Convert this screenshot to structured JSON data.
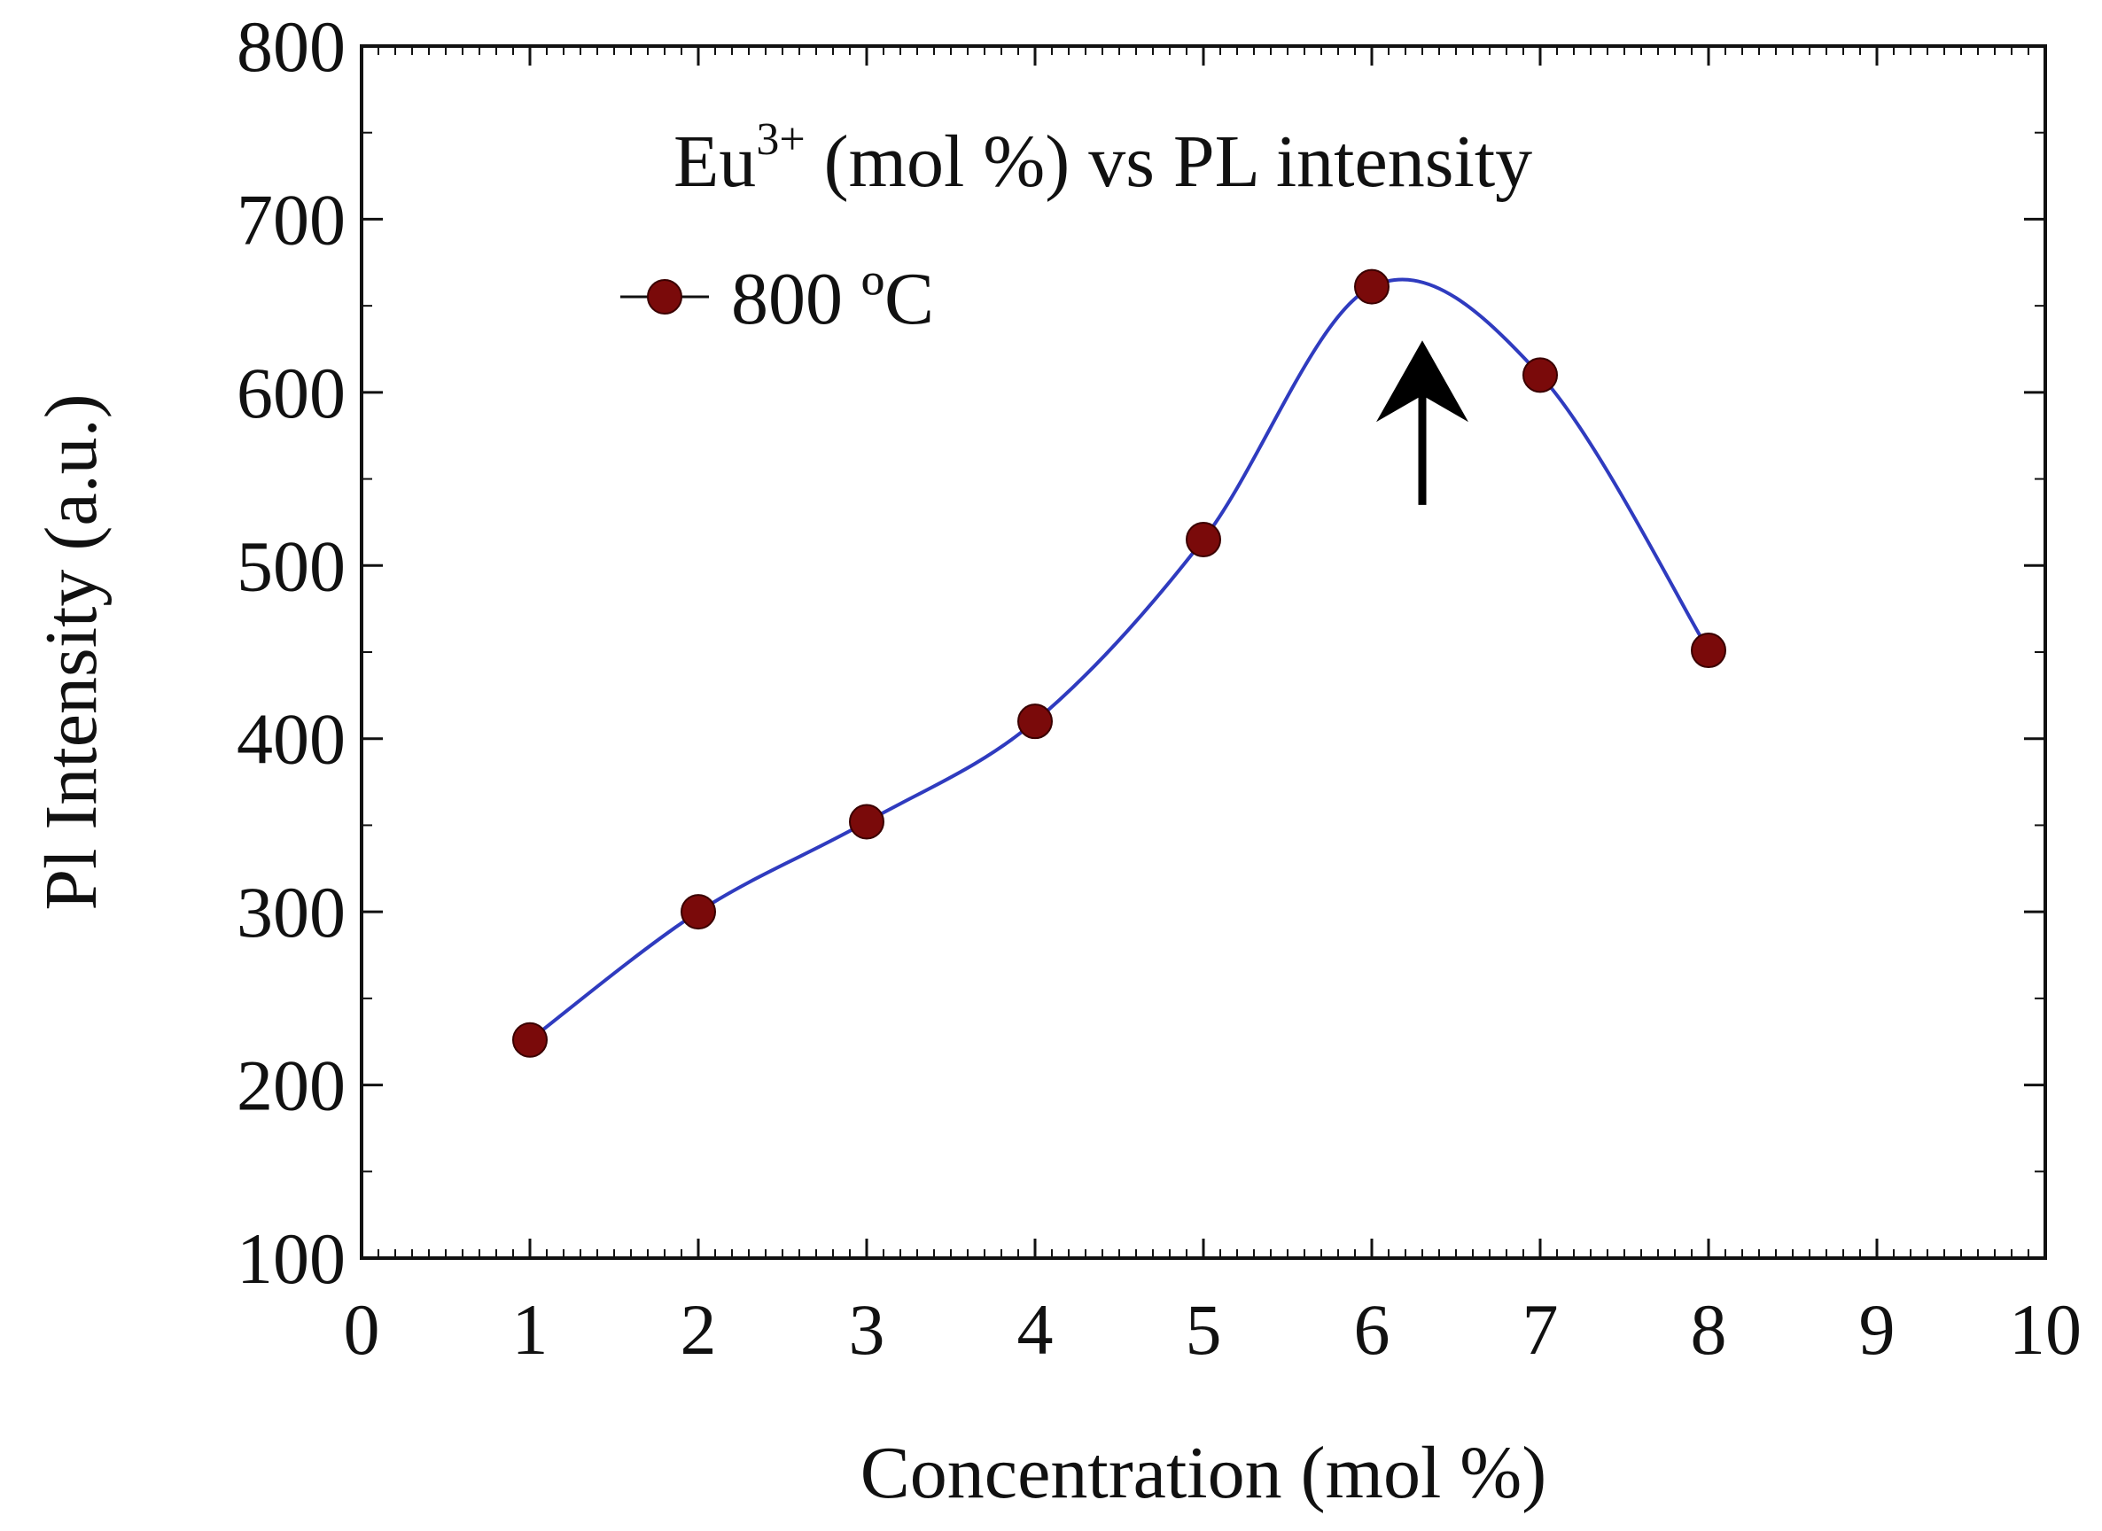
{
  "chart_data": {
    "type": "line",
    "title_main": "Eu",
    "title_sup": "3+",
    "title_rest": " (mol %) vs PL intensity",
    "xlabel": "Concentration (mol %)",
    "ylabel": "Pl Intensity (a.u.)",
    "xlim": [
      0,
      10
    ],
    "ylim": [
      100,
      800
    ],
    "xticks": [
      0,
      1,
      2,
      3,
      4,
      5,
      6,
      7,
      8,
      9,
      10
    ],
    "yticks": [
      100,
      200,
      300,
      400,
      500,
      600,
      700,
      800
    ],
    "grid": false,
    "legend_position": "top-left",
    "series": [
      {
        "name": "800 ºC",
        "x": [
          1,
          2,
          3,
          4,
          5,
          6,
          7,
          8
        ],
        "y": [
          226,
          300,
          352,
          410,
          515,
          661,
          610,
          451
        ],
        "marker_color": "#7a0a0a",
        "line_color": "#2f3bbf"
      }
    ],
    "annotation": {
      "type": "arrow",
      "points_to_x": 6.3,
      "points_to_y": 630,
      "from_y": 535
    }
  }
}
